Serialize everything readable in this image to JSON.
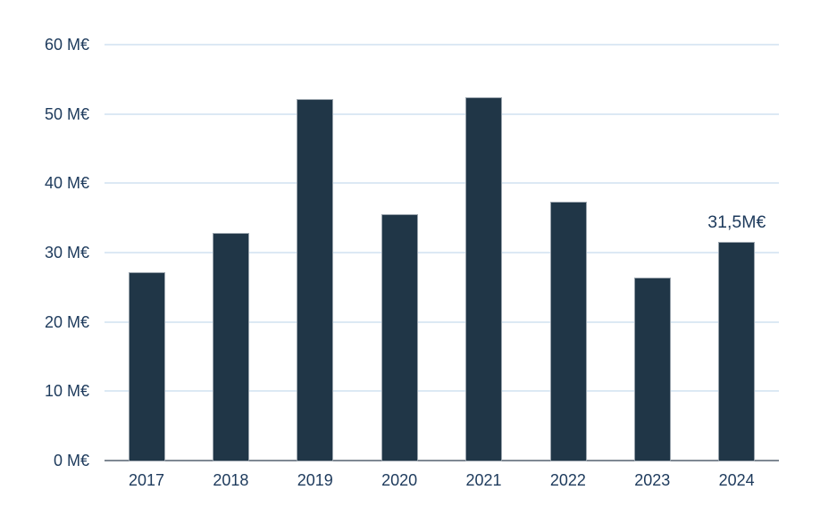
{
  "chart_data": {
    "type": "bar",
    "title": "",
    "xlabel": "",
    "ylabel": "",
    "categories": [
      "2017",
      "2018",
      "2019",
      "2020",
      "2021",
      "2022",
      "2023",
      "2024"
    ],
    "values": [
      27.2,
      32.8,
      52.1,
      35.6,
      52.4,
      37.3,
      26.4,
      31.5
    ],
    "ylim": [
      0,
      60
    ],
    "ytick_step": 10,
    "ytick_labels": [
      "0 M€",
      "10 M€",
      "20 M€",
      "30 M€",
      "40 M€",
      "50 M€",
      "60 M€"
    ],
    "grid": true,
    "legend": false,
    "annotations": [
      {
        "category_index": 7,
        "text": "31,5M€"
      }
    ]
  },
  "colors": {
    "background": "#ffffff",
    "bar_fill": "#203647",
    "bar_border": "#9aa4ad",
    "grid_line": "#dce9f4",
    "axis_line": "#7f8893",
    "text": "#1d3a5c"
  }
}
